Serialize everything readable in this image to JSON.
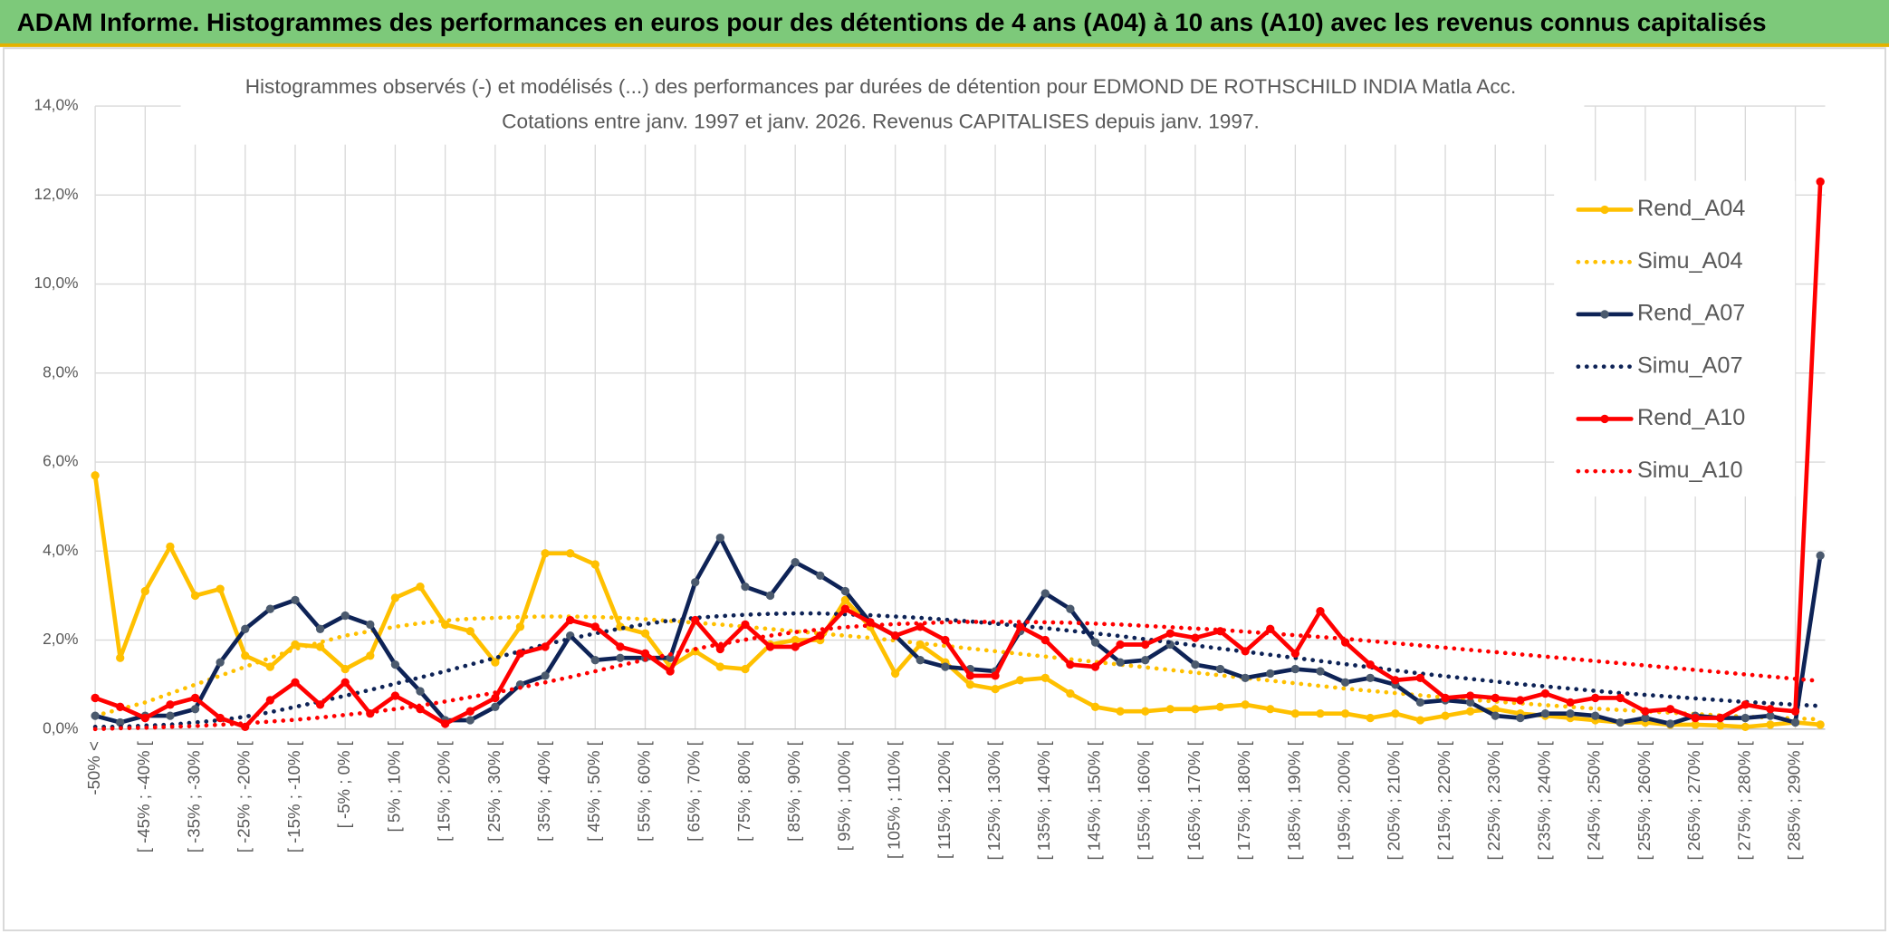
{
  "header": "ADAM Informe. Histogrammes des performances en euros pour des détentions de 4 ans (A04) à 10 ans (A10) avec les revenus connus capitalisés",
  "chart_data": {
    "type": "line",
    "title": "Histogrammes observés (-) et modélisés (...) des performances par durées de détention pour EDMOND DE ROTHSCHILD INDIA Matla Acc.",
    "subtitle": "Cotations entre janv. 1997 et janv. 2026. Revenus CAPITALISES depuis janv. 1997.",
    "categories": [
      "-50% <",
      null,
      "[ -45% ; -40% [",
      null,
      "[ -35% ; -30% [",
      null,
      "[ -25% ; -20% [",
      null,
      "[ -15% ; -10% [",
      null,
      "[ -5% ; 0% [",
      null,
      "[ 5% ; 10% [",
      null,
      "[ 15% ; 20% [",
      null,
      "[ 25% ; 30% [",
      null,
      "[ 35% ; 40% [",
      null,
      "[ 45% ; 50% [",
      null,
      "[ 55% ; 60% [",
      null,
      "[ 65% ; 70% [",
      null,
      "[ 75% ; 80% [",
      null,
      "[ 85% ; 90% [",
      null,
      "[ 95% ; 100% [",
      null,
      "[ 105% ; 110% [",
      null,
      "[ 115% ; 120% [",
      null,
      "[ 125% ; 130% [",
      null,
      "[ 135% ; 140% [",
      null,
      "[ 145% ; 150% [",
      null,
      "[ 155% ; 160% [",
      null,
      "[ 165% ; 170% [",
      null,
      "[ 175% ; 180% [",
      null,
      "[ 185% ; 190% [",
      null,
      "[ 195% ; 200% [",
      null,
      "[ 205% ; 210% [",
      null,
      "[ 215% ; 220% [",
      null,
      "[ 225% ; 230% [",
      null,
      "[ 235% ; 240% [",
      null,
      "[ 245% ; 250% [",
      null,
      "[ 255% ; 260% [",
      null,
      "[ 265% ; 270% [",
      null,
      "[ 275% ; 280% [",
      null,
      "[ 285% ; 290% [",
      null
    ],
    "series": [
      {
        "name": "Rend_A04",
        "color": "#ffc000",
        "line_style": "solid",
        "marker_color": "#ffc000",
        "values": [
          5.7,
          1.6,
          3.1,
          4.1,
          3.0,
          3.15,
          1.65,
          1.4,
          1.9,
          1.85,
          1.35,
          1.65,
          2.95,
          3.2,
          2.35,
          2.2,
          1.5,
          2.3,
          3.95,
          3.95,
          3.7,
          2.3,
          2.15,
          1.4,
          1.75,
          1.4,
          1.35,
          1.9,
          2.0,
          2.0,
          2.9,
          2.3,
          1.25,
          1.9,
          1.5,
          1.0,
          0.9,
          1.1,
          1.15,
          0.8,
          0.5,
          0.4,
          0.4,
          0.45,
          0.45,
          0.5,
          0.55,
          0.45,
          0.35,
          0.35,
          0.35,
          0.25,
          0.35,
          0.2,
          0.3,
          0.4,
          0.45,
          0.35,
          0.3,
          0.25,
          0.2,
          0.15,
          0.15,
          0.1,
          0.1,
          0.08,
          0.05,
          0.1,
          0.15,
          0.1
        ]
      },
      {
        "name": "Simu_A04",
        "color": "#ffc000",
        "line_style": "dotted",
        "values": [
          0.3,
          0.45,
          0.6,
          0.8,
          1.0,
          1.2,
          1.4,
          1.6,
          1.8,
          1.95,
          2.1,
          2.2,
          2.3,
          2.38,
          2.44,
          2.48,
          2.5,
          2.52,
          2.53,
          2.53,
          2.52,
          2.5,
          2.47,
          2.43,
          2.39,
          2.35,
          2.3,
          2.25,
          2.2,
          2.15,
          2.1,
          2.05,
          1.99,
          1.93,
          1.87,
          1.81,
          1.75,
          1.69,
          1.63,
          1.57,
          1.51,
          1.45,
          1.39,
          1.33,
          1.27,
          1.21,
          1.15,
          1.09,
          1.03,
          0.97,
          0.91,
          0.86,
          0.81,
          0.76,
          0.71,
          0.66,
          0.62,
          0.58,
          0.54,
          0.5,
          0.46,
          0.43,
          0.4,
          0.37,
          0.34,
          0.31,
          0.28,
          0.26,
          0.24,
          0.22
        ]
      },
      {
        "name": "Rend_A07",
        "color": "#0e2356",
        "line_style": "solid",
        "marker_color": "#4b5a6e",
        "values": [
          0.3,
          0.15,
          0.3,
          0.3,
          0.45,
          1.5,
          2.25,
          2.7,
          2.9,
          2.25,
          2.55,
          2.35,
          1.45,
          0.85,
          0.2,
          0.2,
          0.5,
          1.0,
          1.2,
          2.1,
          1.55,
          1.6,
          1.6,
          1.6,
          3.3,
          4.3,
          3.2,
          3.0,
          3.75,
          3.45,
          3.1,
          2.4,
          2.1,
          1.55,
          1.4,
          1.35,
          1.3,
          2.2,
          3.05,
          2.7,
          1.95,
          1.5,
          1.55,
          1.9,
          1.45,
          1.35,
          1.15,
          1.25,
          1.35,
          1.3,
          1.05,
          1.15,
          1.0,
          0.6,
          0.65,
          0.6,
          0.3,
          0.25,
          0.35,
          0.35,
          0.3,
          0.15,
          0.25,
          0.12,
          0.3,
          0.25,
          0.25,
          0.3,
          0.15,
          3.9
        ]
      },
      {
        "name": "Simu_A07",
        "color": "#0e2356",
        "line_style": "dotted",
        "values": [
          0.05,
          0.05,
          0.08,
          0.1,
          0.15,
          0.2,
          0.28,
          0.38,
          0.5,
          0.62,
          0.75,
          0.88,
          1.02,
          1.16,
          1.3,
          1.45,
          1.6,
          1.75,
          1.9,
          2.03,
          2.15,
          2.26,
          2.36,
          2.44,
          2.5,
          2.54,
          2.57,
          2.59,
          2.6,
          2.6,
          2.58,
          2.56,
          2.53,
          2.5,
          2.46,
          2.42,
          2.37,
          2.32,
          2.27,
          2.21,
          2.15,
          2.09,
          2.02,
          1.95,
          1.88,
          1.81,
          1.74,
          1.67,
          1.6,
          1.53,
          1.46,
          1.39,
          1.32,
          1.25,
          1.19,
          1.13,
          1.07,
          1.01,
          0.96,
          0.91,
          0.86,
          0.81,
          0.77,
          0.73,
          0.69,
          0.65,
          0.61,
          0.58,
          0.55,
          0.52
        ]
      },
      {
        "name": "Rend_A10",
        "color": "#ff0000",
        "line_style": "solid",
        "marker_color": "#ff0000",
        "values": [
          0.7,
          0.5,
          0.25,
          0.55,
          0.7,
          0.25,
          0.05,
          0.65,
          1.05,
          0.55,
          1.05,
          0.35,
          0.75,
          0.45,
          0.12,
          0.4,
          0.7,
          1.7,
          1.85,
          2.45,
          2.3,
          1.85,
          1.7,
          1.3,
          2.45,
          1.8,
          2.35,
          1.85,
          1.85,
          2.1,
          2.7,
          2.4,
          2.1,
          2.3,
          2.0,
          1.2,
          1.2,
          2.3,
          2.0,
          1.45,
          1.4,
          1.9,
          1.9,
          2.15,
          2.05,
          2.2,
          1.75,
          2.25,
          1.7,
          2.65,
          1.95,
          1.45,
          1.1,
          1.15,
          0.7,
          0.75,
          0.7,
          0.65,
          0.8,
          0.6,
          0.7,
          0.7,
          0.4,
          0.45,
          0.25,
          0.25,
          0.55,
          0.45,
          0.4,
          12.3
        ]
      },
      {
        "name": "Simu_A10",
        "color": "#ff0000",
        "line_style": "dotted",
        "values": [
          0,
          0.02,
          0.03,
          0.05,
          0.07,
          0.1,
          0.13,
          0.17,
          0.21,
          0.26,
          0.32,
          0.38,
          0.45,
          0.53,
          0.62,
          0.72,
          0.82,
          0.93,
          1.05,
          1.17,
          1.3,
          1.43,
          1.56,
          1.68,
          1.8,
          1.91,
          2.01,
          2.1,
          2.18,
          2.24,
          2.29,
          2.33,
          2.36,
          2.38,
          2.4,
          2.41,
          2.41,
          2.41,
          2.4,
          2.39,
          2.37,
          2.35,
          2.32,
          2.29,
          2.26,
          2.23,
          2.19,
          2.15,
          2.11,
          2.07,
          2.03,
          1.98,
          1.93,
          1.88,
          1.83,
          1.78,
          1.73,
          1.68,
          1.63,
          1.58,
          1.53,
          1.48,
          1.43,
          1.38,
          1.33,
          1.28,
          1.23,
          1.18,
          1.13,
          1.08
        ]
      }
    ],
    "ylim": [
      0,
      14
    ],
    "yticks": [
      {
        "value": 0,
        "label": "0,0%"
      },
      {
        "value": 2,
        "label": "2,0%"
      },
      {
        "value": 4,
        "label": "4,0%"
      },
      {
        "value": 6,
        "label": "6,0%"
      },
      {
        "value": 8,
        "label": "8,0%"
      },
      {
        "value": 10,
        "label": "10,0%"
      },
      {
        "value": 12,
        "label": "12,0%"
      },
      {
        "value": 14,
        "label": "14,0%"
      }
    ],
    "grid": true,
    "legend": "right"
  }
}
